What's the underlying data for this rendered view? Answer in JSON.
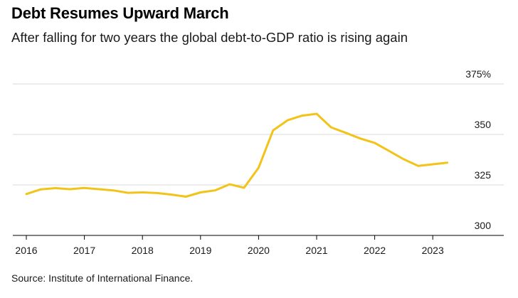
{
  "title": "Debt Resumes Upward March",
  "subtitle": "After falling for two years the global debt-to-GDP ratio is rising again",
  "source": "Source: Institute of International Finance.",
  "colors": {
    "line": "#f2c318",
    "grid": "#d9d9d9",
    "axis": "#000000"
  },
  "chart_data": {
    "type": "line",
    "title": "Debt Resumes Upward March",
    "subtitle": "After falling for two years the global debt-to-GDP ratio is rising again",
    "xlabel": "",
    "ylabel": "",
    "xlim": [
      2016,
      2023.9
    ],
    "ylim": [
      300,
      375
    ],
    "x_ticks": [
      2016,
      2017,
      2018,
      2019,
      2020,
      2021,
      2022,
      2023
    ],
    "x_tick_labels": [
      "2016",
      "2017",
      "2018",
      "2019",
      "2020",
      "2021",
      "2022",
      "2023"
    ],
    "y_ticks": [
      300,
      325,
      350,
      375
    ],
    "y_tick_labels": [
      "300",
      "325",
      "350",
      "375%"
    ],
    "grid": true,
    "y_axis_position": "right",
    "series": [
      {
        "x": [
          2016.0,
          2016.25,
          2016.5,
          2016.75,
          2017.0,
          2017.25,
          2017.5,
          2017.75,
          2018.0,
          2018.25,
          2018.5,
          2018.75,
          2019.0,
          2019.25,
          2019.5,
          2019.75,
          2020.0,
          2020.25,
          2020.5,
          2020.75,
          2021.0,
          2021.25,
          2021.5,
          2021.75,
          2022.0,
          2022.25,
          2022.5,
          2022.75,
          2023.0,
          2023.25
        ],
        "values": [
          320.5,
          322.8,
          323.4,
          322.9,
          323.5,
          322.9,
          322.3,
          321.1,
          321.3,
          321.0,
          320.2,
          319.2,
          321.3,
          322.3,
          325.3,
          323.6,
          333.5,
          352.0,
          357.0,
          359.3,
          360.2,
          353.5,
          350.8,
          348.0,
          345.8,
          341.8,
          337.7,
          334.4,
          335.2,
          336.0
        ]
      }
    ]
  }
}
